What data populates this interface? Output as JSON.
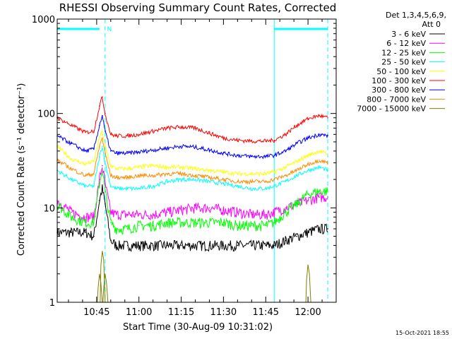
{
  "chart_data": {
    "type": "line",
    "title": "RHESSI Observing Summary Count Rates, Corrected",
    "xlabel": "Start Time (30-Aug-09 10:31:02)",
    "ylabel": "Corrected Count Rate (s⁻¹ detector⁻¹)",
    "yscale": "log",
    "ylim": [
      1,
      1000
    ],
    "xlim": [
      "10:31",
      "12:10"
    ],
    "xticks": [
      "10:45",
      "11:00",
      "11:15",
      "11:30",
      "11:45",
      "12:00"
    ],
    "yticks": [
      "1",
      "10",
      "100",
      "1000"
    ],
    "legend_header": [
      "Det 1,3,4,5,6,9,",
      "Att 0"
    ],
    "legend_position": "right",
    "timestamp": "15-Oct-2021 18:55",
    "annotations": {
      "night_markers": [
        "10:48",
        "11:48",
        "12:07"
      ],
      "flag_label": "N",
      "flag_bars": [
        [
          "10:31",
          "10:46"
        ],
        [
          "11:48",
          "12:07"
        ]
      ]
    },
    "x": [
      "10:31",
      "10:36",
      "10:41",
      "10:44",
      "10:46",
      "10:47",
      "10:48",
      "10:50",
      "10:52",
      "10:56",
      "11:00",
      "11:05",
      "11:10",
      "11:15",
      "11:20",
      "11:25",
      "11:30",
      "11:35",
      "11:40",
      "11:45",
      "11:48",
      "11:52",
      "11:56",
      "12:00",
      "12:04",
      "12:07"
    ],
    "series": [
      {
        "name": "3 - 6 keV",
        "color": "#000000",
        "values": [
          5.5,
          5.5,
          5.5,
          5,
          12,
          16,
          11,
          4.5,
          4,
          4,
          4,
          4,
          4,
          4,
          4,
          4,
          4,
          4,
          4,
          4,
          4,
          4.5,
          5,
          5.5,
          6,
          6
        ]
      },
      {
        "name": "6 - 12 keV",
        "color": "#ff00ff",
        "values": [
          12,
          9,
          8,
          8,
          20,
          28,
          18,
          9,
          8.5,
          8.5,
          8.5,
          8.5,
          9,
          9.5,
          10,
          10,
          9.5,
          9,
          8.5,
          8.5,
          9,
          10,
          11,
          12,
          13,
          13
        ]
      },
      {
        "name": "12 - 25 keV",
        "color": "#00ff00",
        "values": [
          11,
          8,
          7,
          7,
          18,
          26,
          15,
          7,
          6,
          6,
          6.5,
          6.5,
          7,
          7,
          7,
          7,
          7,
          6.5,
          6.5,
          6.5,
          7,
          9,
          11,
          14,
          15,
          15
        ]
      },
      {
        "name": "25 - 50 keV",
        "color": "#00ffff",
        "values": [
          25,
          20,
          17,
          17,
          35,
          45,
          30,
          17,
          16,
          16,
          16,
          17,
          19,
          20,
          20,
          19,
          18,
          17,
          16,
          16,
          17,
          19,
          22,
          25,
          27,
          25
        ]
      },
      {
        "name": "50 - 100 keV",
        "color": "#ffff00",
        "values": [
          45,
          33,
          29,
          31,
          55,
          65,
          45,
          28,
          26,
          26,
          27,
          28,
          27,
          27,
          26,
          25,
          24,
          23,
          23,
          23,
          24,
          27,
          31,
          36,
          40,
          37
        ]
      },
      {
        "name": "100 - 300 keV",
        "color": "#ff0000",
        "values": [
          90,
          75,
          63,
          65,
          120,
          150,
          100,
          60,
          58,
          58,
          60,
          65,
          70,
          72,
          70,
          62,
          55,
          52,
          51,
          51,
          52,
          60,
          75,
          88,
          95,
          90
        ]
      },
      {
        "name": "300 - 800 keV",
        "color": "#0000ff",
        "values": [
          58,
          48,
          40,
          42,
          75,
          95,
          65,
          40,
          38,
          38,
          39,
          41,
          43,
          45,
          44,
          41,
          38,
          36,
          35,
          35,
          36,
          40,
          48,
          55,
          60,
          58
        ]
      },
      {
        "name": "800 - 7000 keV",
        "color": "#ff8c00",
        "values": [
          32,
          26,
          22,
          23,
          45,
          55,
          38,
          22,
          21,
          21,
          22,
          22,
          23,
          23,
          22,
          21,
          20,
          19,
          19,
          19,
          20,
          22,
          25,
          29,
          32,
          30
        ]
      },
      {
        "name": "7000 - 15000 keV",
        "color": "#808000",
        "values": [
          null,
          null,
          null,
          null,
          2,
          3.5,
          2,
          null,
          null,
          null,
          null,
          null,
          null,
          null,
          null,
          null,
          null,
          null,
          null,
          null,
          null,
          null,
          null,
          2.5,
          null,
          null
        ]
      }
    ]
  }
}
